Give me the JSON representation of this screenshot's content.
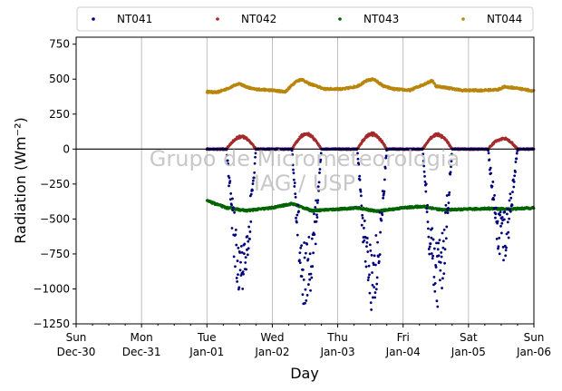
{
  "chart_data": {
    "type": "scatter",
    "xlabel": "Day",
    "ylabel": "Radiation (Wm⁻²)",
    "ylim": [
      -1250,
      800
    ],
    "yticks": [
      -1250,
      -1000,
      -750,
      -500,
      -250,
      0,
      250,
      500,
      750
    ],
    "ytick_labels": [
      "−1250",
      "−1000",
      "−750",
      "−500",
      "−250",
      "0",
      "250",
      "500",
      "750"
    ],
    "xlim": [
      0,
      7
    ],
    "xticks": [
      {
        "day": 0,
        "weekday": "Sun",
        "date": "Dec-30"
      },
      {
        "day": 1,
        "weekday": "Mon",
        "date": "Dec-31"
      },
      {
        "day": 2,
        "weekday": "Tue",
        "date": "Jan-01"
      },
      {
        "day": 3,
        "weekday": "Wed",
        "date": "Jan-02"
      },
      {
        "day": 4,
        "weekday": "Thu",
        "date": "Jan-03"
      },
      {
        "day": 5,
        "weekday": "Fri",
        "date": "Jan-04"
      },
      {
        "day": 6,
        "weekday": "Sat",
        "date": "Jan-05"
      },
      {
        "day": 7,
        "weekday": "Sun",
        "date": "Jan-06"
      }
    ],
    "grid": "vertical",
    "reference_line_y": 0,
    "legend_position": "top, above plot",
    "watermark": [
      "Grupo de Micrometeorologia",
      "IAG / USP"
    ],
    "series": [
      {
        "name": "NT041",
        "color": "#00007a",
        "night_value": 0,
        "day_peaks": [
          {
            "day": 2,
            "peak": -1085
          },
          {
            "day": 3,
            "peak": -1180
          },
          {
            "day": 4,
            "peak": -1160
          },
          {
            "day": 5,
            "peak": -1160
          },
          {
            "day": 6,
            "peak": -820
          }
        ]
      },
      {
        "name": "NT042",
        "color": "#a52a2a",
        "night_value": 0,
        "day_peaks": [
          {
            "day": 2,
            "peak": 95
          },
          {
            "day": 3,
            "peak": 115
          },
          {
            "day": 4,
            "peak": 115
          },
          {
            "day": 5,
            "peak": 110
          },
          {
            "day": 6,
            "peak": 80
          }
        ]
      },
      {
        "name": "NT043",
        "color": "#006400",
        "points": [
          [
            2.0,
            -370
          ],
          [
            2.3,
            -420
          ],
          [
            2.6,
            -440
          ],
          [
            3.0,
            -420
          ],
          [
            3.3,
            -390
          ],
          [
            3.6,
            -440
          ],
          [
            4.0,
            -430
          ],
          [
            4.3,
            -420
          ],
          [
            4.6,
            -445
          ],
          [
            5.0,
            -420
          ],
          [
            5.3,
            -410
          ],
          [
            5.6,
            -435
          ],
          [
            6.0,
            -430
          ],
          [
            6.3,
            -425
          ],
          [
            6.6,
            -430
          ],
          [
            7.0,
            -420
          ]
        ]
      },
      {
        "name": "NT044",
        "color": "#b8860b",
        "points": [
          [
            2.0,
            410
          ],
          [
            2.15,
            405
          ],
          [
            2.3,
            430
          ],
          [
            2.5,
            470
          ],
          [
            2.55,
            455
          ],
          [
            2.7,
            430
          ],
          [
            3.0,
            420
          ],
          [
            3.2,
            410
          ],
          [
            3.35,
            480
          ],
          [
            3.45,
            500
          ],
          [
            3.55,
            470
          ],
          [
            3.8,
            430
          ],
          [
            4.1,
            430
          ],
          [
            4.3,
            450
          ],
          [
            4.45,
            490
          ],
          [
            4.55,
            500
          ],
          [
            4.7,
            450
          ],
          [
            4.85,
            430
          ],
          [
            5.1,
            420
          ],
          [
            5.3,
            460
          ],
          [
            5.45,
            490
          ],
          [
            5.5,
            450
          ],
          [
            5.65,
            440
          ],
          [
            5.9,
            420
          ],
          [
            6.2,
            420
          ],
          [
            6.45,
            425
          ],
          [
            6.55,
            445
          ],
          [
            6.75,
            435
          ],
          [
            7.0,
            415
          ]
        ]
      }
    ]
  }
}
